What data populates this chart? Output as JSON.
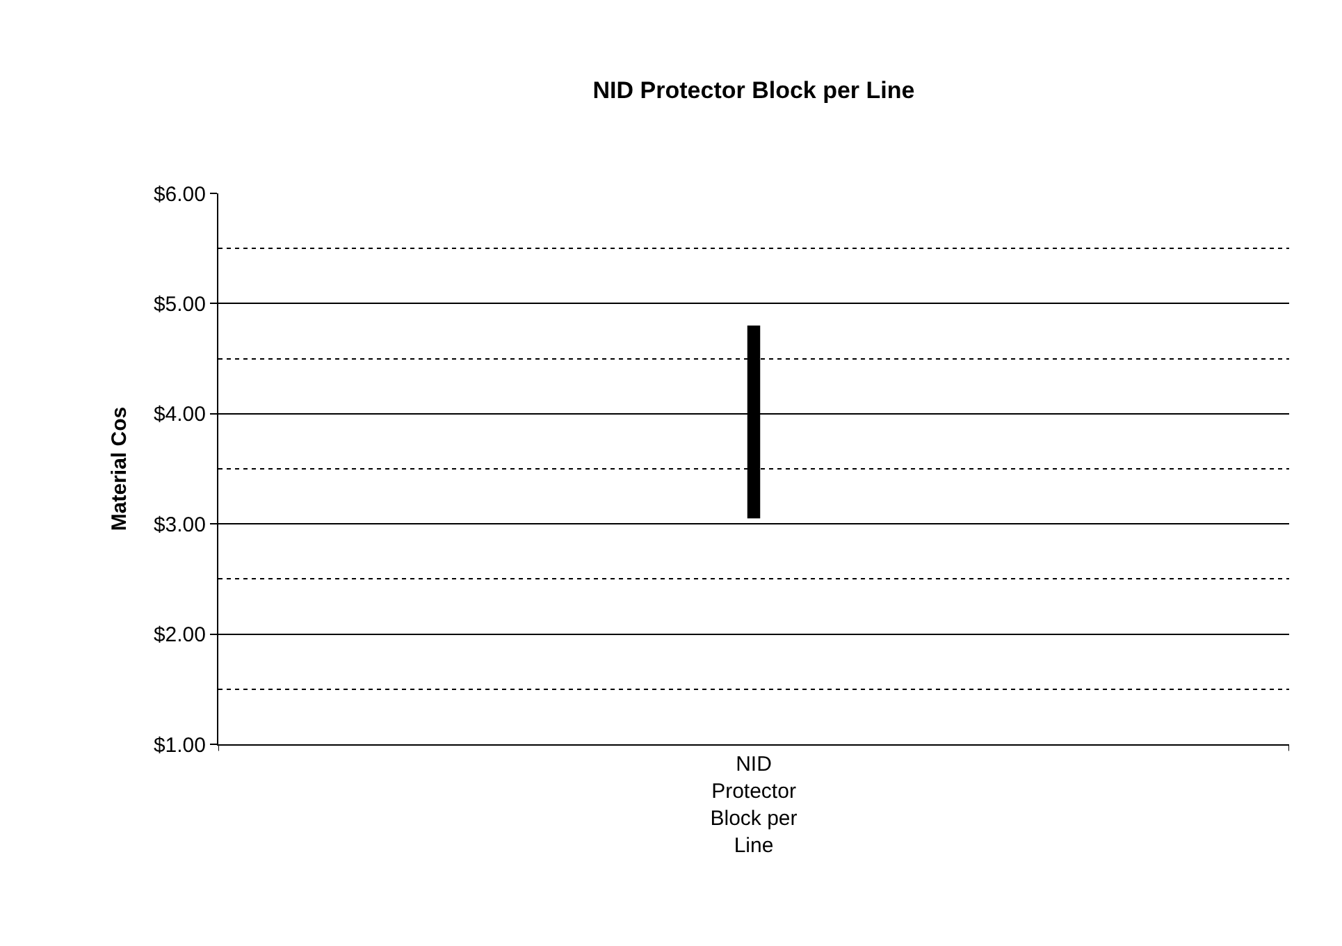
{
  "chart_data": {
    "type": "bar",
    "title": "NID Protector Block per Line",
    "ylabel": "Material Cos",
    "categories": [
      "NID Protector Block per Line"
    ],
    "series": [
      {
        "color": "#000000",
        "base": [
          3.05
        ],
        "values": [
          1.75
        ]
      }
    ],
    "ylim": [
      1,
      6
    ],
    "yticks": [
      {
        "value": 1,
        "label": "$1.00"
      },
      {
        "value": 1.5,
        "label": null
      },
      {
        "value": 2,
        "label": "$2.00"
      },
      {
        "value": 2.5,
        "label": null
      },
      {
        "value": 3,
        "label": "$3.00"
      },
      {
        "value": 3.5,
        "label": null
      },
      {
        "value": 4,
        "label": "$4.00"
      },
      {
        "value": 4.5,
        "label": null
      },
      {
        "value": 5,
        "label": "$5.00"
      },
      {
        "value": 5.5,
        "label": null
      },
      {
        "value": 6,
        "label": "$6.00"
      }
    ],
    "grid": "y"
  }
}
